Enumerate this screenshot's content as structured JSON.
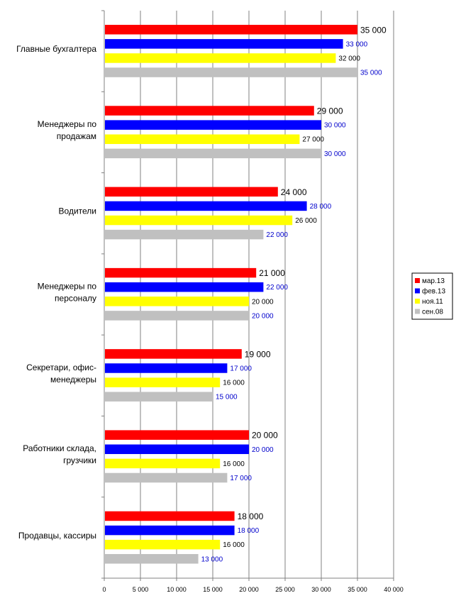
{
  "chart_data": {
    "type": "bar",
    "orientation": "horizontal",
    "categories": [
      [
        "Главные бухгалтера"
      ],
      [
        "Менеджеры по",
        "продажам"
      ],
      [
        "Водители"
      ],
      [
        "Менеджеры по",
        "персоналу"
      ],
      [
        "Секретари, офис-",
        "менеджеры"
      ],
      [
        "Работники склада,",
        "грузчики"
      ],
      [
        "Продавцы, кассиры"
      ]
    ],
    "series": [
      {
        "name": "мар.13",
        "color": "#ff0000",
        "label_color": "#000000",
        "label_size": "large",
        "values": [
          35000,
          29000,
          24000,
          21000,
          19000,
          20000,
          18000
        ],
        "labels": [
          "35 000",
          "29 000",
          "24 000",
          "21 000",
          "19 000",
          "20 000",
          "18 000"
        ]
      },
      {
        "name": "фев.13",
        "color": "#0000ff",
        "label_color": "#0000cc",
        "label_size": "small",
        "values": [
          33000,
          30000,
          28000,
          22000,
          17000,
          20000,
          18000
        ],
        "labels": [
          "33 000",
          "30 000",
          "28 000",
          "22 000",
          "17 000",
          "20 000",
          "18 000"
        ]
      },
      {
        "name": "ноя.11",
        "color": "#ffff00",
        "label_color": "#000000",
        "label_size": "small",
        "values": [
          32000,
          27000,
          26000,
          20000,
          16000,
          16000,
          16000
        ],
        "labels": [
          "32 000",
          "27 000",
          "26 000",
          "20 000",
          "16 000",
          "16 000",
          "16 000"
        ]
      },
      {
        "name": "сен.08",
        "color": "#c0c0c0",
        "label_color": "#0000cc",
        "label_size": "small",
        "values": [
          35000,
          30000,
          22000,
          20000,
          15000,
          17000,
          13000
        ],
        "labels": [
          "35 000",
          "30 000",
          "22 000",
          "20 000",
          "15 000",
          "17 000",
          "13 000"
        ]
      }
    ],
    "xlim": [
      0,
      40000
    ],
    "xticks": [
      0,
      5000,
      10000,
      15000,
      20000,
      25000,
      30000,
      35000,
      40000
    ],
    "xtick_labels": [
      "0",
      "5 000",
      "10 000",
      "15 000",
      "20 000",
      "25 000",
      "30 000",
      "35 000",
      "40 000"
    ],
    "grid": "vertical",
    "grid_color": "#808080",
    "legend_position": "right"
  }
}
